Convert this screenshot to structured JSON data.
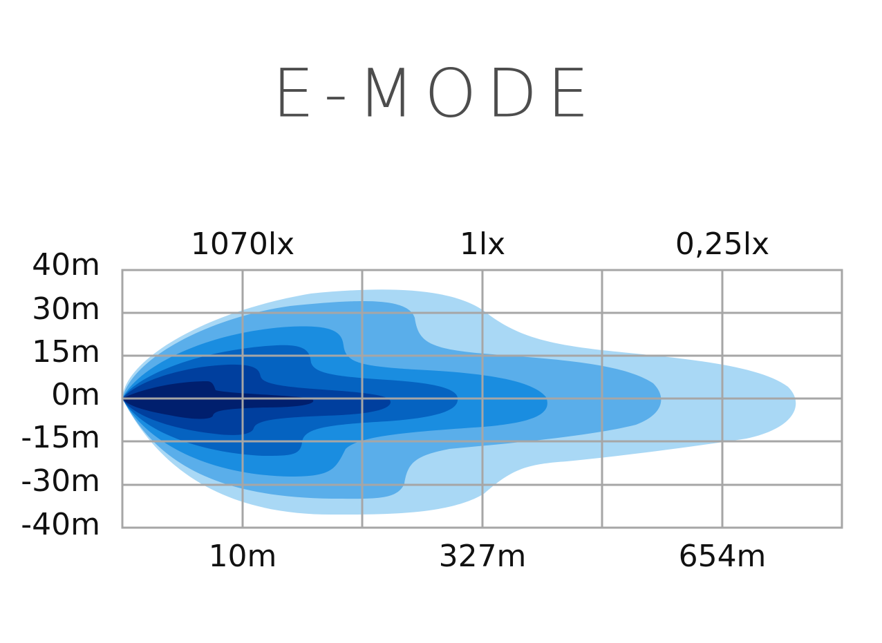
{
  "title": "E-MODE",
  "top_labels": [
    "1070lx",
    "1lx",
    "0,25lx"
  ],
  "y_labels": [
    "40m",
    "30m",
    "15m",
    "0m",
    "-15m",
    "-30m",
    "-40m"
  ],
  "bottom_labels": [
    "10m",
    "327m",
    "654m"
  ]
}
